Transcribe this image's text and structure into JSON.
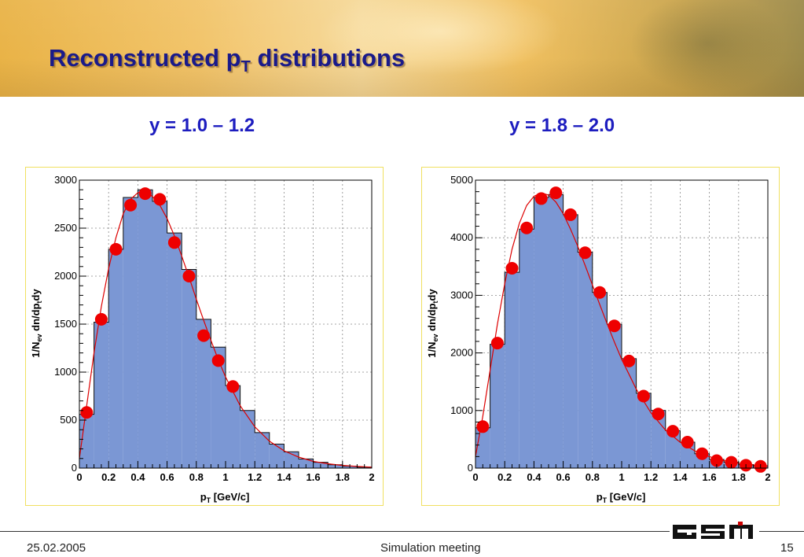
{
  "slide": {
    "title_main": "Reconstructed p",
    "title_sub": "T",
    "title_rest": " distributions"
  },
  "footer": {
    "date": "25.02.2005",
    "center": "Simulation meeting",
    "page": "15"
  },
  "colors": {
    "title": "#1a1a8a",
    "panel_title": "#1d1dbf",
    "hist_fill": "#7b97d4",
    "points": "#ee0000",
    "fit_curve": "#dd0000",
    "panel_border": "#f0e060"
  },
  "chart_data": [
    {
      "type": "bar",
      "title": "y = 1.0 – 1.2",
      "xlabel": "p",
      "xlabel_sub": "T",
      "xlabel_rest": " [GeV/c]",
      "ylabel": "1/N",
      "ylabel_sub1": "ev",
      "ylabel_mid": " dn/dp",
      "ylabel_sub2": "t",
      "ylabel_rest": "dy",
      "xlim": [
        0,
        2
      ],
      "ylim": [
        0,
        3000
      ],
      "xticks": [
        0,
        0.2,
        0.4,
        0.6,
        0.8,
        1,
        1.2,
        1.4,
        1.6,
        1.8,
        2
      ],
      "xtick_labels": [
        "0",
        "0.2",
        "0.4",
        "0.6",
        "0.8",
        "1",
        "1.2",
        "1.4",
        "1.6",
        "1.8",
        "2"
      ],
      "yticks": [
        0,
        500,
        1000,
        1500,
        2000,
        2500,
        3000
      ],
      "ytick_labels": [
        "0",
        "500",
        "1000",
        "1500",
        "2000",
        "2500",
        "3000"
      ],
      "grid": true,
      "bin_edges": [
        0,
        0.1,
        0.2,
        0.3,
        0.4,
        0.5,
        0.6,
        0.7,
        0.8,
        0.9,
        1.0,
        1.1,
        1.2,
        1.3,
        1.4,
        1.5,
        1.6,
        1.7,
        1.8,
        1.9,
        2.0
      ],
      "histogram": [
        560,
        1520,
        2280,
        2820,
        2900,
        2780,
        2450,
        2070,
        1550,
        1260,
        860,
        600,
        370,
        250,
        170,
        95,
        60,
        35,
        20,
        10
      ],
      "points_x": [
        0.05,
        0.15,
        0.25,
        0.35,
        0.45,
        0.55,
        0.65,
        0.75,
        0.85,
        0.95,
        1.05
      ],
      "points_y": [
        580,
        1550,
        2280,
        2740,
        2860,
        2800,
        2350,
        2000,
        1380,
        1120,
        850
      ],
      "fit_x": [
        0.0,
        0.05,
        0.1,
        0.15,
        0.2,
        0.25,
        0.3,
        0.35,
        0.4,
        0.45,
        0.5,
        0.55,
        0.6,
        0.65,
        0.7,
        0.75,
        0.8,
        0.85,
        0.9,
        0.95,
        1.0,
        1.1,
        1.2,
        1.3,
        1.4,
        1.5,
        1.6,
        1.7,
        1.8,
        1.9,
        2.0
      ],
      "fit_y": [
        100,
        650,
        1200,
        1680,
        2080,
        2400,
        2650,
        2800,
        2870,
        2880,
        2830,
        2740,
        2600,
        2420,
        2210,
        1990,
        1760,
        1540,
        1330,
        1130,
        950,
        650,
        430,
        280,
        180,
        115,
        70,
        45,
        28,
        17,
        10
      ]
    },
    {
      "type": "bar",
      "title": "y = 1.8 – 2.0",
      "xlabel": "p",
      "xlabel_sub": "T",
      "xlabel_rest": " [GeV/c]",
      "ylabel": "1/N",
      "ylabel_sub1": "ev",
      "ylabel_mid": " dn/dp",
      "ylabel_sub2": "t",
      "ylabel_rest": "dy",
      "xlim": [
        0,
        2
      ],
      "ylim": [
        0,
        5000
      ],
      "xticks": [
        0,
        0.2,
        0.4,
        0.6,
        0.8,
        1,
        1.2,
        1.4,
        1.6,
        1.8,
        2
      ],
      "xtick_labels": [
        "0",
        "0.2",
        "0.4",
        "0.6",
        "0.8",
        "1",
        "1.2",
        "1.4",
        "1.6",
        "1.8",
        "2"
      ],
      "yticks": [
        0,
        1000,
        2000,
        3000,
        4000,
        5000
      ],
      "ytick_labels": [
        "0",
        "1000",
        "2000",
        "3000",
        "4000",
        "5000"
      ],
      "grid": true,
      "bin_edges": [
        0,
        0.1,
        0.2,
        0.3,
        0.4,
        0.5,
        0.6,
        0.7,
        0.8,
        0.9,
        1.0,
        1.1,
        1.2,
        1.3,
        1.4,
        1.5,
        1.6,
        1.7,
        1.8,
        1.9,
        2.0
      ],
      "histogram": [
        700,
        2150,
        3400,
        4150,
        4700,
        4750,
        4400,
        3750,
        3050,
        2500,
        1900,
        1300,
        1000,
        650,
        450,
        250,
        150,
        100,
        60,
        40
      ],
      "points_x": [
        0.05,
        0.15,
        0.25,
        0.35,
        0.45,
        0.55,
        0.65,
        0.75,
        0.85,
        0.95,
        1.05,
        1.15,
        1.25,
        1.35,
        1.45,
        1.55,
        1.65,
        1.75,
        1.85,
        1.95
      ],
      "points_y": [
        720,
        2170,
        3470,
        4170,
        4680,
        4780,
        4400,
        3740,
        3050,
        2470,
        1860,
        1250,
        940,
        640,
        450,
        250,
        130,
        100,
        50,
        30
      ],
      "fit_x": [
        0.0,
        0.05,
        0.1,
        0.15,
        0.2,
        0.25,
        0.3,
        0.35,
        0.4,
        0.45,
        0.5,
        0.55,
        0.6,
        0.65,
        0.7,
        0.75,
        0.8,
        0.85,
        0.9,
        0.95,
        1.0,
        1.1,
        1.2,
        1.3,
        1.4,
        1.5,
        1.6,
        1.7,
        1.8,
        1.9,
        2.0
      ],
      "fit_y": [
        200,
        900,
        1700,
        2500,
        3200,
        3800,
        4250,
        4560,
        4720,
        4780,
        4740,
        4620,
        4420,
        4150,
        3850,
        3520,
        3180,
        2840,
        2510,
        2190,
        1890,
        1370,
        960,
        660,
        450,
        300,
        200,
        130,
        85,
        55,
        35
      ]
    }
  ]
}
